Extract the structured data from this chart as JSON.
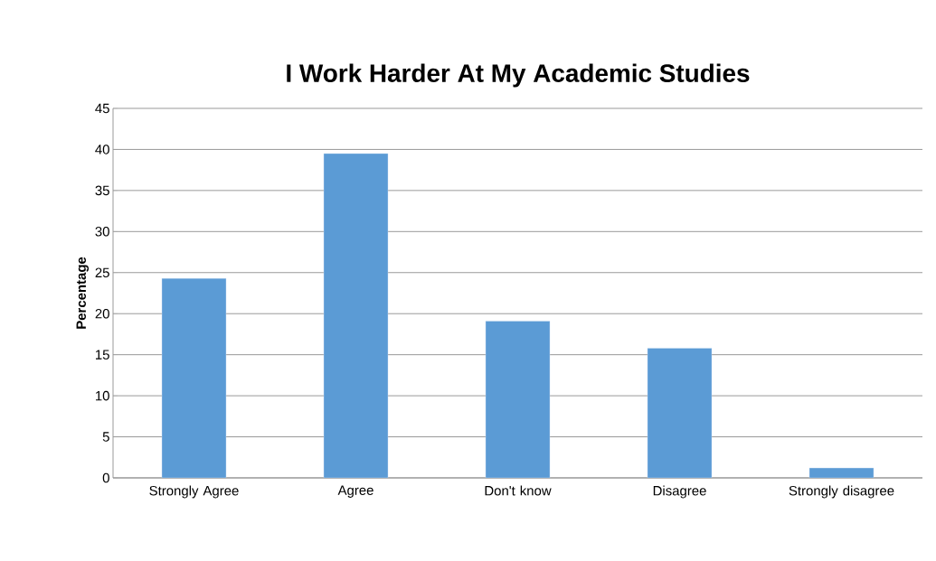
{
  "chart_data": {
    "type": "bar",
    "title": "I Work Harder At My Academic Studies",
    "ylabel": "Percentage",
    "categories": [
      "Strongly Agree",
      "Agree",
      "Don't know",
      "Disagree",
      "Strongly disagree"
    ],
    "values": [
      24.3,
      39.5,
      19.1,
      15.8,
      1.2
    ],
    "color": "#5b9bd5",
    "ylim": [
      0,
      45
    ],
    "yticks": [
      0,
      5,
      10,
      15,
      20,
      25,
      30,
      35,
      40,
      45
    ],
    "grid": "y"
  }
}
